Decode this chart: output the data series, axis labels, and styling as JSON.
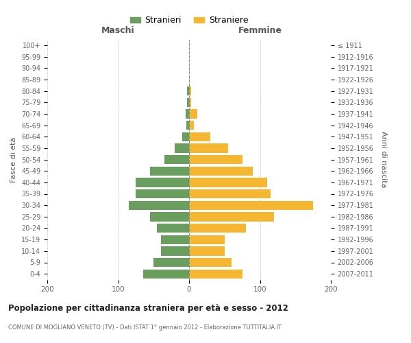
{
  "age_groups": [
    "0-4",
    "5-9",
    "10-14",
    "15-19",
    "20-24",
    "25-29",
    "30-34",
    "35-39",
    "40-44",
    "45-49",
    "50-54",
    "55-59",
    "60-64",
    "65-69",
    "70-74",
    "75-79",
    "80-84",
    "85-89",
    "90-94",
    "95-99",
    "100+"
  ],
  "birth_years": [
    "2007-2011",
    "2002-2006",
    "1997-2001",
    "1992-1996",
    "1987-1991",
    "1982-1986",
    "1977-1981",
    "1972-1976",
    "1967-1971",
    "1962-1966",
    "1957-1961",
    "1952-1956",
    "1947-1951",
    "1942-1946",
    "1937-1941",
    "1932-1936",
    "1927-1931",
    "1922-1926",
    "1917-1921",
    "1912-1916",
    "≤ 1911"
  ],
  "maschi": [
    65,
    50,
    40,
    40,
    45,
    55,
    85,
    75,
    75,
    55,
    35,
    20,
    10,
    4,
    5,
    3,
    3,
    0,
    0,
    0,
    0
  ],
  "femmine": [
    75,
    60,
    50,
    50,
    80,
    120,
    175,
    115,
    110,
    90,
    75,
    55,
    30,
    7,
    12,
    3,
    3,
    0,
    0,
    0,
    0
  ],
  "maschi_color": "#6a9e5e",
  "femmine_color": "#f5b731",
  "background_color": "#ffffff",
  "grid_color": "#cccccc",
  "center_line_color": "#888888",
  "title": "Popolazione per cittadinanza straniera per età e sesso - 2012",
  "subtitle": "COMUNE DI MOGLIANO VENETO (TV) - Dati ISTAT 1° gennaio 2012 - Elaborazione TUTTITALIA.IT",
  "ylabel_left": "Fasce di età",
  "ylabel_right": "Anni di nascita",
  "xlabel_maschi": "Maschi",
  "xlabel_femmine": "Femmine",
  "legend_maschi": "Stranieri",
  "legend_femmine": "Straniere",
  "xlim": [
    -200,
    200
  ],
  "bar_height": 0.8
}
